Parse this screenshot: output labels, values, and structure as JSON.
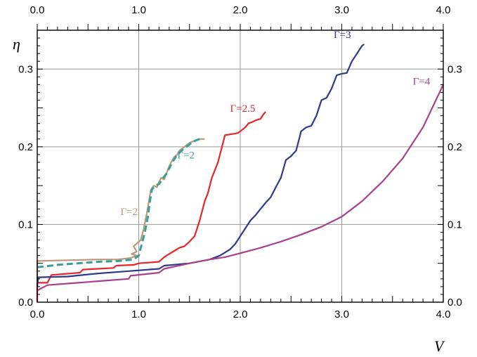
{
  "chart_data": {
    "type": "line",
    "title": "",
    "xlabel": "V",
    "ylabel": "η",
    "xlim": [
      0,
      4
    ],
    "ylim": [
      0,
      0.35
    ],
    "x_ticks": [
      "0.0",
      "1.0",
      "2.0",
      "3.0",
      "4.0"
    ],
    "y_ticks": [
      "0.0",
      "0.1",
      "0.2",
      "0.3"
    ],
    "grid": true,
    "series": [
      {
        "name": "Γ=2",
        "color": "#b89a7a",
        "style": "solid",
        "points": [
          [
            0,
            0.0
          ],
          [
            0,
            0.053
          ],
          [
            0.3,
            0.054
          ],
          [
            0.6,
            0.055
          ],
          [
            0.8,
            0.055
          ],
          [
            0.92,
            0.057
          ],
          [
            0.98,
            0.06
          ],
          [
            0.93,
            0.062
          ],
          [
            0.98,
            0.065
          ],
          [
            0.95,
            0.072
          ],
          [
            1.02,
            0.08
          ],
          [
            1.05,
            0.095
          ],
          [
            1.08,
            0.115
          ],
          [
            1.1,
            0.13
          ],
          [
            1.12,
            0.145
          ],
          [
            1.15,
            0.15
          ],
          [
            1.18,
            0.148
          ],
          [
            1.2,
            0.155
          ],
          [
            1.22,
            0.16
          ],
          [
            1.25,
            0.158
          ],
          [
            1.28,
            0.168
          ],
          [
            1.3,
            0.175
          ],
          [
            1.32,
            0.18
          ],
          [
            1.35,
            0.187
          ],
          [
            1.38,
            0.19
          ],
          [
            1.4,
            0.195
          ],
          [
            1.45,
            0.2
          ],
          [
            1.5,
            0.205
          ],
          [
            1.55,
            0.208
          ],
          [
            1.6,
            0.21
          ],
          [
            1.65,
            0.21
          ]
        ],
        "label_pos": [
          0.82,
          0.112
        ]
      },
      {
        "name": "Γ=2",
        "color": "#3a9e98",
        "style": "dashed",
        "points": [
          [
            0,
            0.045
          ],
          [
            0.2,
            0.048
          ],
          [
            0.4,
            0.05
          ],
          [
            0.6,
            0.052
          ],
          [
            0.8,
            0.053
          ],
          [
            0.95,
            0.055
          ],
          [
            1.0,
            0.06
          ],
          [
            1.03,
            0.075
          ],
          [
            1.06,
            0.09
          ],
          [
            1.09,
            0.11
          ],
          [
            1.11,
            0.13
          ],
          [
            1.13,
            0.145
          ],
          [
            1.16,
            0.15
          ],
          [
            1.2,
            0.152
          ],
          [
            1.23,
            0.158
          ],
          [
            1.27,
            0.165
          ],
          [
            1.3,
            0.172
          ],
          [
            1.33,
            0.18
          ],
          [
            1.37,
            0.188
          ],
          [
            1.42,
            0.195
          ],
          [
            1.47,
            0.2
          ],
          [
            1.52,
            0.205
          ],
          [
            1.56,
            0.208
          ],
          [
            1.6,
            0.21
          ]
        ],
        "label_pos": [
          1.38,
          0.185
        ]
      },
      {
        "name": "Γ=2.5",
        "color": "#e8262a",
        "style": "solid",
        "points": [
          [
            0,
            0.0
          ],
          [
            0,
            0.025
          ],
          [
            0.1,
            0.025
          ],
          [
            0.14,
            0.035
          ],
          [
            0.42,
            0.038
          ],
          [
            0.45,
            0.042
          ],
          [
            0.75,
            0.044
          ],
          [
            0.78,
            0.047
          ],
          [
            0.95,
            0.048
          ],
          [
            1.0,
            0.05
          ],
          [
            1.2,
            0.052
          ],
          [
            1.25,
            0.058
          ],
          [
            1.3,
            0.062
          ],
          [
            1.35,
            0.066
          ],
          [
            1.4,
            0.07
          ],
          [
            1.45,
            0.072
          ],
          [
            1.5,
            0.078
          ],
          [
            1.55,
            0.085
          ],
          [
            1.6,
            0.105
          ],
          [
            1.62,
            0.115
          ],
          [
            1.65,
            0.13
          ],
          [
            1.68,
            0.14
          ],
          [
            1.72,
            0.16
          ],
          [
            1.75,
            0.17
          ],
          [
            1.78,
            0.18
          ],
          [
            1.82,
            0.2
          ],
          [
            1.85,
            0.215
          ],
          [
            1.9,
            0.216
          ],
          [
            1.95,
            0.217
          ],
          [
            1.98,
            0.218
          ],
          [
            2.0,
            0.22
          ],
          [
            2.05,
            0.225
          ],
          [
            2.08,
            0.23
          ],
          [
            2.12,
            0.232
          ],
          [
            2.15,
            0.234
          ],
          [
            2.2,
            0.236
          ],
          [
            2.23,
            0.242
          ],
          [
            2.25,
            0.245
          ]
        ],
        "label_pos": [
          1.9,
          0.245
        ]
      },
      {
        "name": "Γ=3",
        "color": "#2e3a8c",
        "style": "solid",
        "points": [
          [
            0,
            0.02
          ],
          [
            0.01,
            0.032
          ],
          [
            0.3,
            0.033
          ],
          [
            0.6,
            0.037
          ],
          [
            0.9,
            0.04
          ],
          [
            1.2,
            0.043
          ],
          [
            1.25,
            0.047
          ],
          [
            1.5,
            0.05
          ],
          [
            1.7,
            0.055
          ],
          [
            1.8,
            0.06
          ],
          [
            1.9,
            0.068
          ],
          [
            1.95,
            0.075
          ],
          [
            2.0,
            0.085
          ],
          [
            2.05,
            0.095
          ],
          [
            2.1,
            0.105
          ],
          [
            2.15,
            0.112
          ],
          [
            2.2,
            0.12
          ],
          [
            2.25,
            0.128
          ],
          [
            2.3,
            0.135
          ],
          [
            2.35,
            0.148
          ],
          [
            2.4,
            0.16
          ],
          [
            2.45,
            0.183
          ],
          [
            2.5,
            0.188
          ],
          [
            2.55,
            0.195
          ],
          [
            2.6,
            0.22
          ],
          [
            2.65,
            0.225
          ],
          [
            2.7,
            0.227
          ],
          [
            2.75,
            0.24
          ],
          [
            2.8,
            0.26
          ],
          [
            2.85,
            0.263
          ],
          [
            2.9,
            0.275
          ],
          [
            2.95,
            0.292
          ],
          [
            3.0,
            0.294
          ],
          [
            3.05,
            0.295
          ],
          [
            3.1,
            0.31
          ],
          [
            3.15,
            0.32
          ],
          [
            3.2,
            0.33
          ],
          [
            3.22,
            0.332
          ]
        ],
        "label_pos": [
          2.92,
          0.34
        ]
      },
      {
        "name": "Γ=4",
        "color": "#a8418c",
        "style": "solid",
        "points": [
          [
            0,
            0.015
          ],
          [
            0.1,
            0.022
          ],
          [
            0.4,
            0.025
          ],
          [
            0.7,
            0.028
          ],
          [
            0.9,
            0.03
          ],
          [
            0.92,
            0.034
          ],
          [
            1.2,
            0.038
          ],
          [
            1.25,
            0.043
          ],
          [
            1.5,
            0.05
          ],
          [
            1.7,
            0.055
          ],
          [
            1.85,
            0.058
          ],
          [
            2.0,
            0.063
          ],
          [
            2.2,
            0.07
          ],
          [
            2.4,
            0.078
          ],
          [
            2.6,
            0.087
          ],
          [
            2.8,
            0.097
          ],
          [
            3.0,
            0.11
          ],
          [
            3.2,
            0.13
          ],
          [
            3.4,
            0.155
          ],
          [
            3.6,
            0.185
          ],
          [
            3.8,
            0.225
          ],
          [
            4.0,
            0.28
          ]
        ],
        "label_pos": [
          3.7,
          0.28
        ]
      }
    ]
  }
}
